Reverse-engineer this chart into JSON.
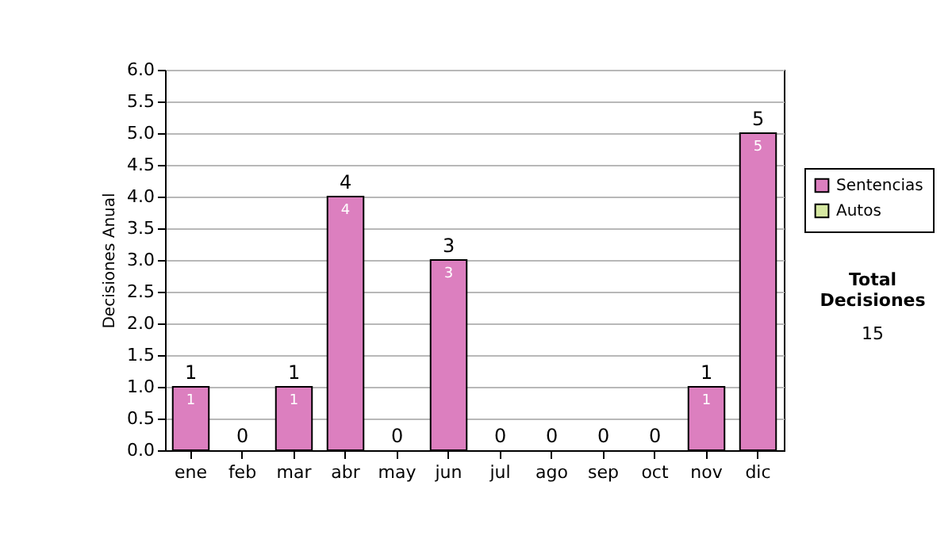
{
  "chart_data": {
    "type": "bar",
    "stacked": true,
    "categories": [
      "ene",
      "feb",
      "mar",
      "abr",
      "may",
      "jun",
      "jul",
      "ago",
      "sep",
      "oct",
      "nov",
      "dic"
    ],
    "series": [
      {
        "name": "Sentencias",
        "color": "#dc7fbf",
        "values": [
          1,
          0,
          1,
          4,
          0,
          3,
          0,
          0,
          0,
          0,
          1,
          5
        ],
        "value_labels": [
          "1",
          null,
          "1",
          "4",
          null,
          "3",
          null,
          null,
          null,
          null,
          "1",
          "5"
        ]
      },
      {
        "name": "Autos",
        "color": "#d6e8a2",
        "values": [
          0,
          0,
          0,
          0,
          0,
          0,
          0,
          0,
          0,
          0,
          0,
          0
        ]
      }
    ],
    "totals": [
      "1",
      "0",
      "1",
      "4",
      "0",
      "3",
      "0",
      "0",
      "0",
      "0",
      "1",
      "5"
    ],
    "ylabel": "Decisiones Anual",
    "ylim": [
      0,
      6
    ],
    "yticks": [
      {
        "value": 0,
        "label": "0.0"
      },
      {
        "value": 0.5,
        "label": "0.5"
      },
      {
        "value": 1,
        "label": "1.0"
      },
      {
        "value": 1.5,
        "label": "1.5"
      },
      {
        "value": 2,
        "label": "2.0"
      },
      {
        "value": 2.5,
        "label": "2.5"
      },
      {
        "value": 3,
        "label": "3.0"
      },
      {
        "value": 3.5,
        "label": "3.5"
      },
      {
        "value": 4,
        "label": "4.0"
      },
      {
        "value": 4.5,
        "label": "4.5"
      },
      {
        "value": 5,
        "label": "5.0"
      },
      {
        "value": 5.5,
        "label": "5.5"
      },
      {
        "value": 6,
        "label": "6.0"
      }
    ],
    "grid": "y",
    "legend": "right",
    "annotations": [
      "Total Decisiones",
      "15"
    ]
  }
}
